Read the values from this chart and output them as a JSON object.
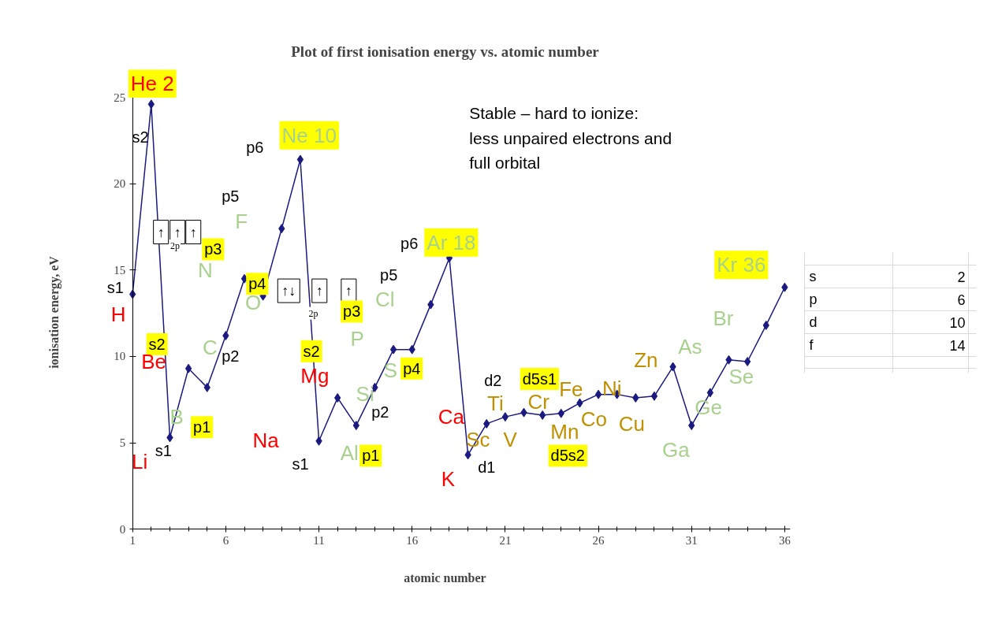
{
  "chart_data": [
    {
      "type": "line",
      "title": "Plot of first ionisation energy vs. atomic number",
      "xlabel": "atomic number",
      "ylabel": "ionisation energy, eV",
      "x": [
        1,
        2,
        3,
        4,
        5,
        6,
        7,
        8,
        9,
        10,
        11,
        12,
        13,
        14,
        15,
        16,
        17,
        18,
        19,
        20,
        21,
        22,
        23,
        24,
        25,
        26,
        27,
        28,
        29,
        30,
        31,
        32,
        33,
        34,
        35,
        36
      ],
      "series": [
        {
          "color": "#1a1a80",
          "values": [
            13.6,
            24.6,
            5.3,
            9.3,
            8.2,
            11.2,
            14.5,
            13.5,
            17.4,
            21.4,
            5.1,
            7.6,
            6.0,
            8.2,
            10.4,
            10.4,
            13.0,
            15.7,
            4.3,
            6.1,
            6.5,
            6.75,
            6.6,
            6.7,
            7.3,
            7.8,
            7.8,
            7.6,
            7.7,
            9.4,
            6.0,
            7.9,
            9.8,
            9.7,
            11.8,
            14.0
          ]
        }
      ],
      "marker": "diamond",
      "line_style": "solid",
      "grid": false,
      "xlim": [
        1,
        36.3
      ],
      "ylim": [
        0,
        25
      ],
      "xticks": [
        1,
        6,
        11,
        16,
        21,
        26,
        31,
        36
      ],
      "yticks": [
        0,
        5,
        10,
        15,
        20,
        25
      ],
      "annotations": [
        "Stable – hard to ionize:\nless unpaired electrons and\nfull orbital",
        "He 2",
        "s2",
        "p6",
        "Ne 10",
        "p5",
        "F",
        "p3",
        "N",
        "s1",
        "H",
        "s2",
        "Be",
        "C",
        "p2",
        "B",
        "p1",
        "s1",
        "Li",
        "p4",
        "O",
        "↑↓",
        "↑",
        "↑",
        "2p",
        "↑",
        "↑",
        "↑",
        "2p",
        "p3",
        "p5",
        "Cl",
        "P",
        "s2",
        "Mg",
        "Si",
        "p2",
        "S",
        "p4",
        "Na",
        "s1",
        "Al",
        "p1",
        "p6",
        "Ar 18",
        "Ca",
        "K",
        "d2",
        "d5s1",
        "Ti",
        "Cr",
        "Fe",
        "Ni",
        "Sc",
        "V",
        "d1",
        "Mn",
        "Co",
        "Cu",
        "d5s2",
        "Zn",
        "As",
        "Br",
        "Se",
        "Ge",
        "Ga",
        "Kr 36"
      ]
    },
    {
      "type": "other",
      "categories": [
        "s",
        "p",
        "d",
        "f"
      ],
      "values": [
        2,
        6,
        10,
        14
      ],
      "data_labels": true
    }
  ]
}
